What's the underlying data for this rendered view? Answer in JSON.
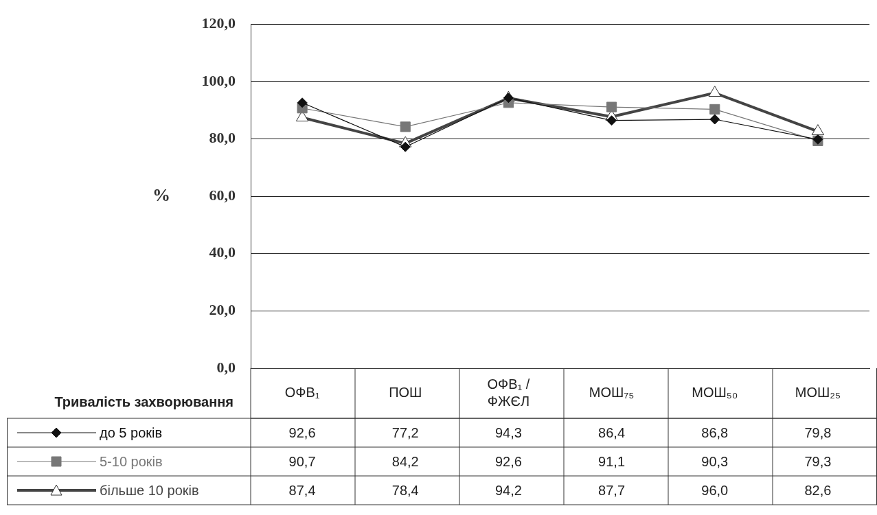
{
  "chart_data": {
    "type": "line",
    "ylabel": "%",
    "legend_title": "Тривалість захворювання",
    "categories": [
      "ОФВ₁",
      "ПОШ",
      "ОФВ₁ / ФЖЄЛ",
      "МОШ₇₅",
      "МОШ₅₀",
      "МОШ₂₅"
    ],
    "series": [
      {
        "name": "до 5 років",
        "color": "#111111",
        "marker": "diamond",
        "values": [
          92.6,
          77.2,
          94.3,
          86.4,
          86.8,
          79.8
        ],
        "value_labels": [
          "92,6",
          "77,2",
          "94,3",
          "86,4",
          "86,8",
          "79,8"
        ]
      },
      {
        "name": "5-10 років",
        "color": "#777777",
        "marker": "square",
        "values": [
          90.7,
          84.2,
          92.6,
          91.1,
          90.3,
          79.3
        ],
        "value_labels": [
          "90,7",
          "84,2",
          "92,6",
          "91,1",
          "90,3",
          "79,3"
        ]
      },
      {
        "name": "більше 10 років",
        "color": "#444444",
        "marker": "triangle",
        "values": [
          87.4,
          78.4,
          94.2,
          87.7,
          96.0,
          82.6
        ],
        "value_labels": [
          "87,4",
          "78,4",
          "94,2",
          "87,7",
          "96,0",
          "82,6"
        ]
      }
    ],
    "ylim": [
      0,
      120
    ],
    "yticks": [
      {
        "value": 0,
        "label": "0,0"
      },
      {
        "value": 20,
        "label": "20,0"
      },
      {
        "value": 40,
        "label": "40,0"
      },
      {
        "value": 60,
        "label": "60,0"
      },
      {
        "value": 80,
        "label": "80,0"
      },
      {
        "value": 100,
        "label": "100,0"
      },
      {
        "value": 120,
        "label": "120,0"
      }
    ],
    "grid": "y",
    "legend": "bottom left",
    "line_style": "solid"
  }
}
